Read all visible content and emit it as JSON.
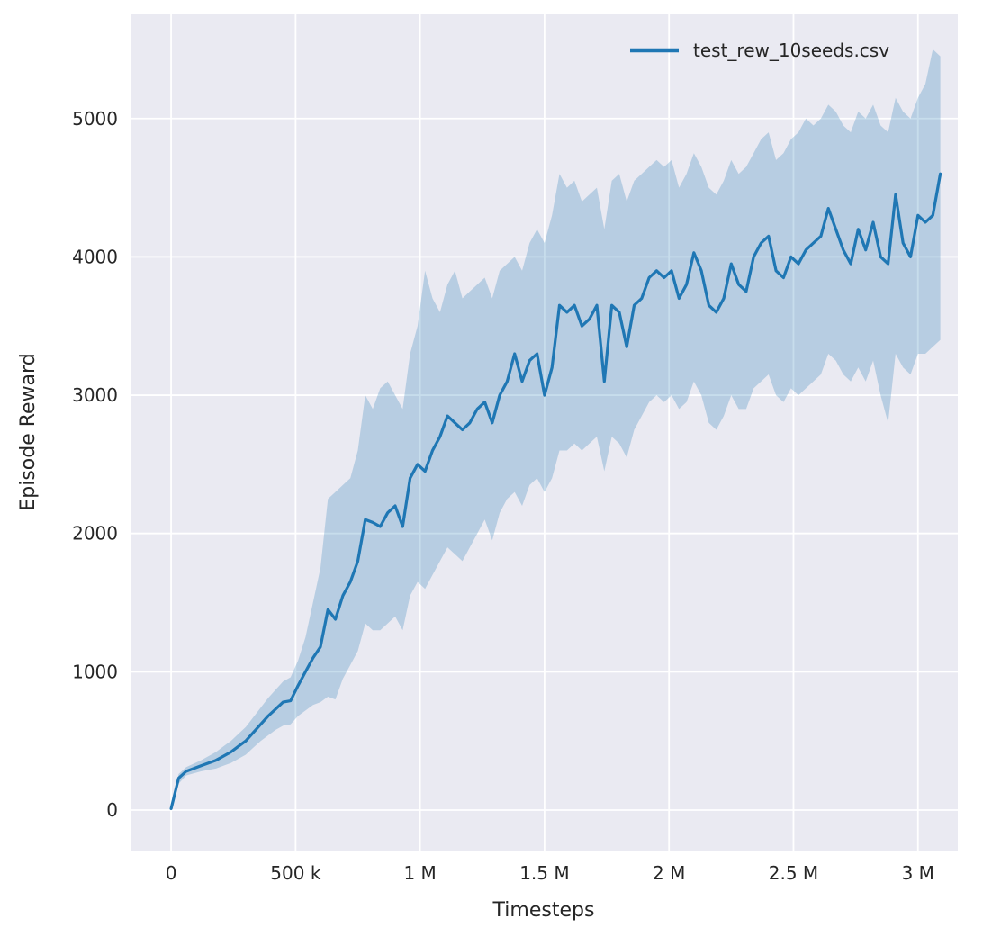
{
  "figure": {
    "background": "#ffffff"
  },
  "chart_data": {
    "type": "line",
    "title": "",
    "xlabel": "Timesteps",
    "ylabel": "Episode Reward",
    "grid": true,
    "legend": {
      "position": "upper right",
      "entries": [
        {
          "label": "test_rew_10seeds.csv",
          "color": "#1f77b4"
        }
      ]
    },
    "style": {
      "plot_bg": "#eaeaf2",
      "grid_color": "#ffffff",
      "line_color": "#1f77b4",
      "band_color": "#1f77b4",
      "band_opacity": 0.25,
      "text_color": "#262626"
    },
    "x_axis": {
      "lim": [
        -163000,
        3160000
      ],
      "ticks": [
        0,
        500000,
        1000000,
        1500000,
        2000000,
        2500000,
        3000000
      ],
      "tick_labels": [
        "0",
        "500 k",
        "1 M",
        "1.5 M",
        "2 M",
        "2.5 M",
        "3 M"
      ]
    },
    "y_axis": {
      "lim": [
        -293,
        5760
      ],
      "ticks": [
        0,
        1000,
        2000,
        3000,
        4000,
        5000
      ],
      "tick_labels": [
        "0",
        "1000",
        "2000",
        "3000",
        "4000",
        "5000"
      ]
    },
    "series": [
      {
        "name": "test_rew_10seeds.csv",
        "x": [
          0,
          30000,
          60000,
          90000,
          120000,
          150000,
          180000,
          210000,
          240000,
          270000,
          300000,
          330000,
          360000,
          390000,
          420000,
          450000,
          480000,
          510000,
          540000,
          570000,
          600000,
          630000,
          660000,
          690000,
          720000,
          750000,
          780000,
          810000,
          840000,
          870000,
          900000,
          930000,
          960000,
          990000,
          1020000,
          1050000,
          1080000,
          1110000,
          1140000,
          1170000,
          1200000,
          1230000,
          1260000,
          1290000,
          1320000,
          1350000,
          1380000,
          1410000,
          1440000,
          1470000,
          1500000,
          1530000,
          1560000,
          1590000,
          1620000,
          1650000,
          1680000,
          1710000,
          1740000,
          1770000,
          1800000,
          1830000,
          1860000,
          1890000,
          1920000,
          1950000,
          1980000,
          2010000,
          2040000,
          2070000,
          2100000,
          2130000,
          2160000,
          2190000,
          2220000,
          2250000,
          2280000,
          2310000,
          2340000,
          2370000,
          2400000,
          2430000,
          2460000,
          2490000,
          2520000,
          2550000,
          2580000,
          2610000,
          2640000,
          2670000,
          2700000,
          2730000,
          2760000,
          2790000,
          2820000,
          2850000,
          2880000,
          2910000,
          2940000,
          2970000,
          3000000,
          3030000,
          3060000,
          3090000
        ],
        "mean": [
          10,
          230,
          280,
          300,
          320,
          340,
          360,
          390,
          420,
          460,
          500,
          560,
          620,
          680,
          730,
          780,
          790,
          900,
          1000,
          1100,
          1180,
          1450,
          1380,
          1550,
          1650,
          1800,
          2100,
          2080,
          2050,
          2150,
          2200,
          2050,
          2400,
          2500,
          2450,
          2600,
          2700,
          2850,
          2800,
          2750,
          2800,
          2900,
          2950,
          2800,
          3000,
          3100,
          3300,
          3100,
          3250,
          3300,
          3000,
          3200,
          3650,
          3600,
          3650,
          3500,
          3550,
          3650,
          3100,
          3650,
          3600,
          3350,
          3650,
          3700,
          3850,
          3900,
          3850,
          3900,
          3700,
          3800,
          4030,
          3900,
          3650,
          3600,
          3700,
          3950,
          3800,
          3750,
          4000,
          4100,
          4150,
          3900,
          3850,
          4000,
          3950,
          4050,
          4100,
          4150,
          4350,
          4200,
          4050,
          3950,
          4200,
          4050,
          4250,
          4000,
          3950,
          4450,
          4100,
          4000,
          4300,
          4250,
          4300,
          4600
        ],
        "lower": [
          0,
          190,
          250,
          265,
          280,
          290,
          300,
          320,
          340,
          370,
          400,
          450,
          500,
          540,
          580,
          610,
          620,
          680,
          720,
          760,
          780,
          820,
          800,
          950,
          1050,
          1150,
          1350,
          1300,
          1300,
          1350,
          1400,
          1300,
          1550,
          1650,
          1600,
          1700,
          1800,
          1900,
          1850,
          1800,
          1900,
          2000,
          2100,
          1950,
          2150,
          2250,
          2300,
          2200,
          2350,
          2400,
          2300,
          2400,
          2600,
          2600,
          2650,
          2600,
          2650,
          2700,
          2450,
          2700,
          2650,
          2550,
          2750,
          2850,
          2950,
          3000,
          2950,
          3000,
          2900,
          2950,
          3100,
          3000,
          2800,
          2750,
          2850,
          3000,
          2900,
          2900,
          3050,
          3100,
          3150,
          3000,
          2950,
          3050,
          3000,
          3050,
          3100,
          3150,
          3300,
          3250,
          3150,
          3100,
          3200,
          3100,
          3250,
          3000,
          2800,
          3300,
          3200,
          3150,
          3300,
          3300,
          3350,
          3400
        ],
        "upper": [
          30,
          260,
          310,
          335,
          360,
          390,
          420,
          460,
          500,
          550,
          600,
          670,
          740,
          810,
          870,
          930,
          960,
          1080,
          1250,
          1500,
          1750,
          2250,
          2300,
          2350,
          2400,
          2600,
          3000,
          2900,
          3050,
          3100,
          3000,
          2900,
          3300,
          3500,
          3900,
          3700,
          3600,
          3800,
          3900,
          3700,
          3750,
          3800,
          3850,
          3700,
          3900,
          3950,
          4000,
          3900,
          4100,
          4200,
          4100,
          4300,
          4600,
          4500,
          4550,
          4400,
          4450,
          4500,
          4200,
          4550,
          4600,
          4400,
          4550,
          4600,
          4650,
          4700,
          4650,
          4700,
          4500,
          4600,
          4750,
          4650,
          4500,
          4450,
          4550,
          4700,
          4600,
          4650,
          4750,
          4850,
          4900,
          4700,
          4750,
          4850,
          4900,
          5000,
          4950,
          5000,
          5100,
          5050,
          4950,
          4900,
          5050,
          5000,
          5100,
          4950,
          4900,
          5150,
          5050,
          5000,
          5150,
          5250,
          5500,
          5450
        ]
      }
    ]
  }
}
